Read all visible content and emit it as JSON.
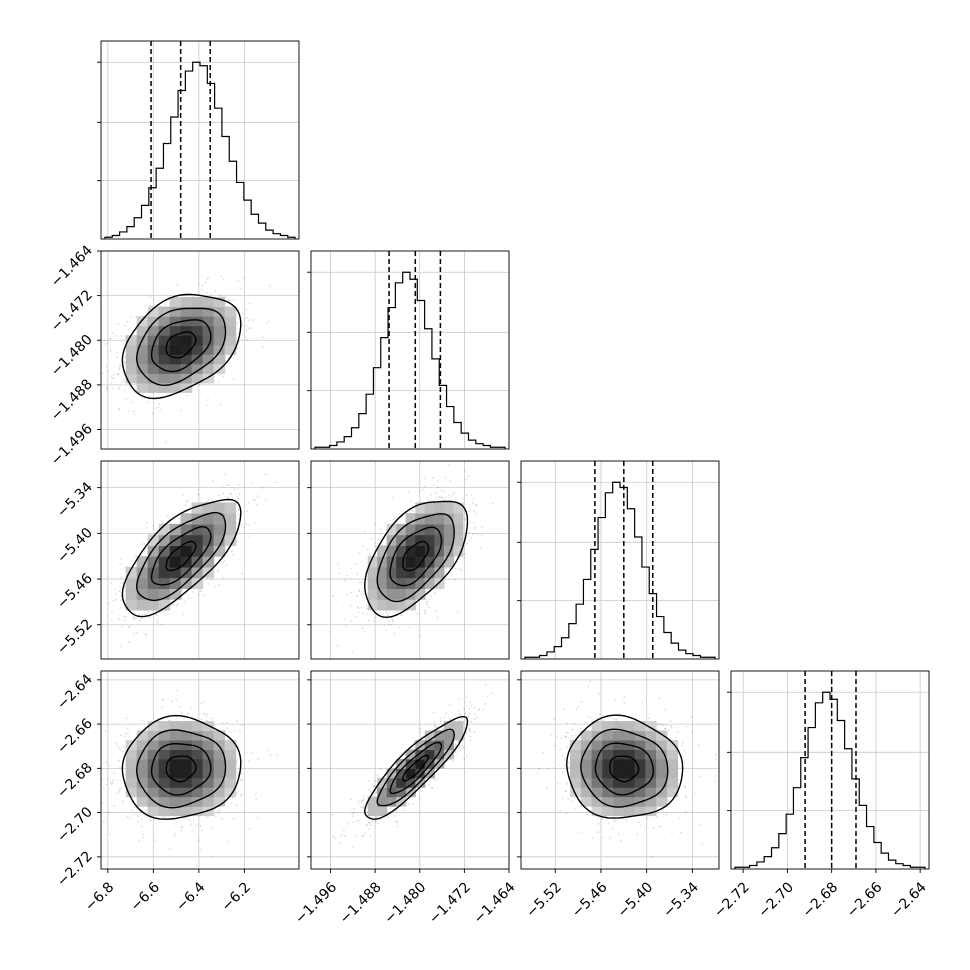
{
  "chart_data": {
    "type": "corner",
    "grid": true,
    "params": [
      {
        "range": [
          -6.83,
          -5.96
        ],
        "ticks": [
          -6.8,
          -6.6,
          -6.4,
          -6.2
        ],
        "tick_labels": [
          "−6.8",
          "−6.6",
          "−6.4",
          "−6.2"
        ],
        "quantiles": [
          -6.61,
          -6.48,
          -6.35
        ]
      },
      {
        "range": [
          -1.4995,
          -1.464
        ],
        "ticks": [
          -1.496,
          -1.488,
          -1.48,
          -1.472,
          -1.464
        ],
        "tick_labels": [
          "−1.496",
          "−1.488",
          "−1.480",
          "−1.472",
          "−1.464"
        ],
        "quantiles": [
          -1.4855,
          -1.4808,
          -1.4763
        ]
      },
      {
        "range": [
          -5.565,
          -5.305
        ],
        "ticks": [
          -5.52,
          -5.46,
          -5.4,
          -5.34
        ],
        "tick_labels": [
          "−5.52",
          "−5.46",
          "−5.40",
          "−5.34"
        ],
        "quantiles": [
          -5.468,
          -5.43,
          -5.392
        ]
      },
      {
        "range": [
          -2.7255,
          -2.636
        ],
        "ticks": [
          -2.72,
          -2.7,
          -2.68,
          -2.66,
          -2.64
        ],
        "tick_labels": [
          "−2.72",
          "−2.70",
          "−2.68",
          "−2.66",
          "−2.64"
        ],
        "quantiles": [
          -2.692,
          -2.68,
          -2.669
        ]
      }
    ],
    "histograms": [
      [
        1,
        2,
        4,
        7,
        12,
        19,
        29,
        40,
        54,
        69,
        84,
        95,
        100,
        98,
        88,
        74,
        58,
        44,
        32,
        22,
        14,
        9,
        5,
        3,
        2,
        1
      ],
      [
        1,
        1,
        2,
        4,
        7,
        12,
        20,
        31,
        46,
        63,
        80,
        94,
        100,
        96,
        84,
        68,
        51,
        36,
        24,
        15,
        9,
        5,
        3,
        2,
        1,
        1
      ],
      [
        1,
        1,
        2,
        4,
        7,
        12,
        20,
        31,
        45,
        62,
        80,
        94,
        100,
        97,
        85,
        69,
        52,
        37,
        24,
        15,
        9,
        5,
        3,
        2,
        1,
        1
      ],
      [
        1,
        1,
        2,
        4,
        7,
        12,
        20,
        31,
        46,
        63,
        80,
        94,
        100,
        96,
        84,
        68,
        51,
        36,
        24,
        15,
        9,
        5,
        3,
        2,
        1,
        1
      ]
    ],
    "correlations": [
      {
        "row": 1,
        "col": 0,
        "center": [
          -6.48,
          -1.4808
        ],
        "rho": 0.35
      },
      {
        "row": 2,
        "col": 0,
        "center": [
          -6.48,
          -5.43
        ],
        "rho": 0.7
      },
      {
        "row": 2,
        "col": 1,
        "center": [
          -1.4808,
          -5.43
        ],
        "rho": 0.55
      },
      {
        "row": 3,
        "col": 0,
        "center": [
          -6.48,
          -2.68
        ],
        "rho": 0.05
      },
      {
        "row": 3,
        "col": 1,
        "center": [
          -1.4808,
          -2.68
        ],
        "rho": 0.88
      },
      {
        "row": 3,
        "col": 2,
        "center": [
          -5.43,
          -2.68
        ],
        "rho": -0.05
      }
    ],
    "contour_levels_sigma": [
      0.5,
      1.0,
      1.5,
      2.0
    ]
  }
}
